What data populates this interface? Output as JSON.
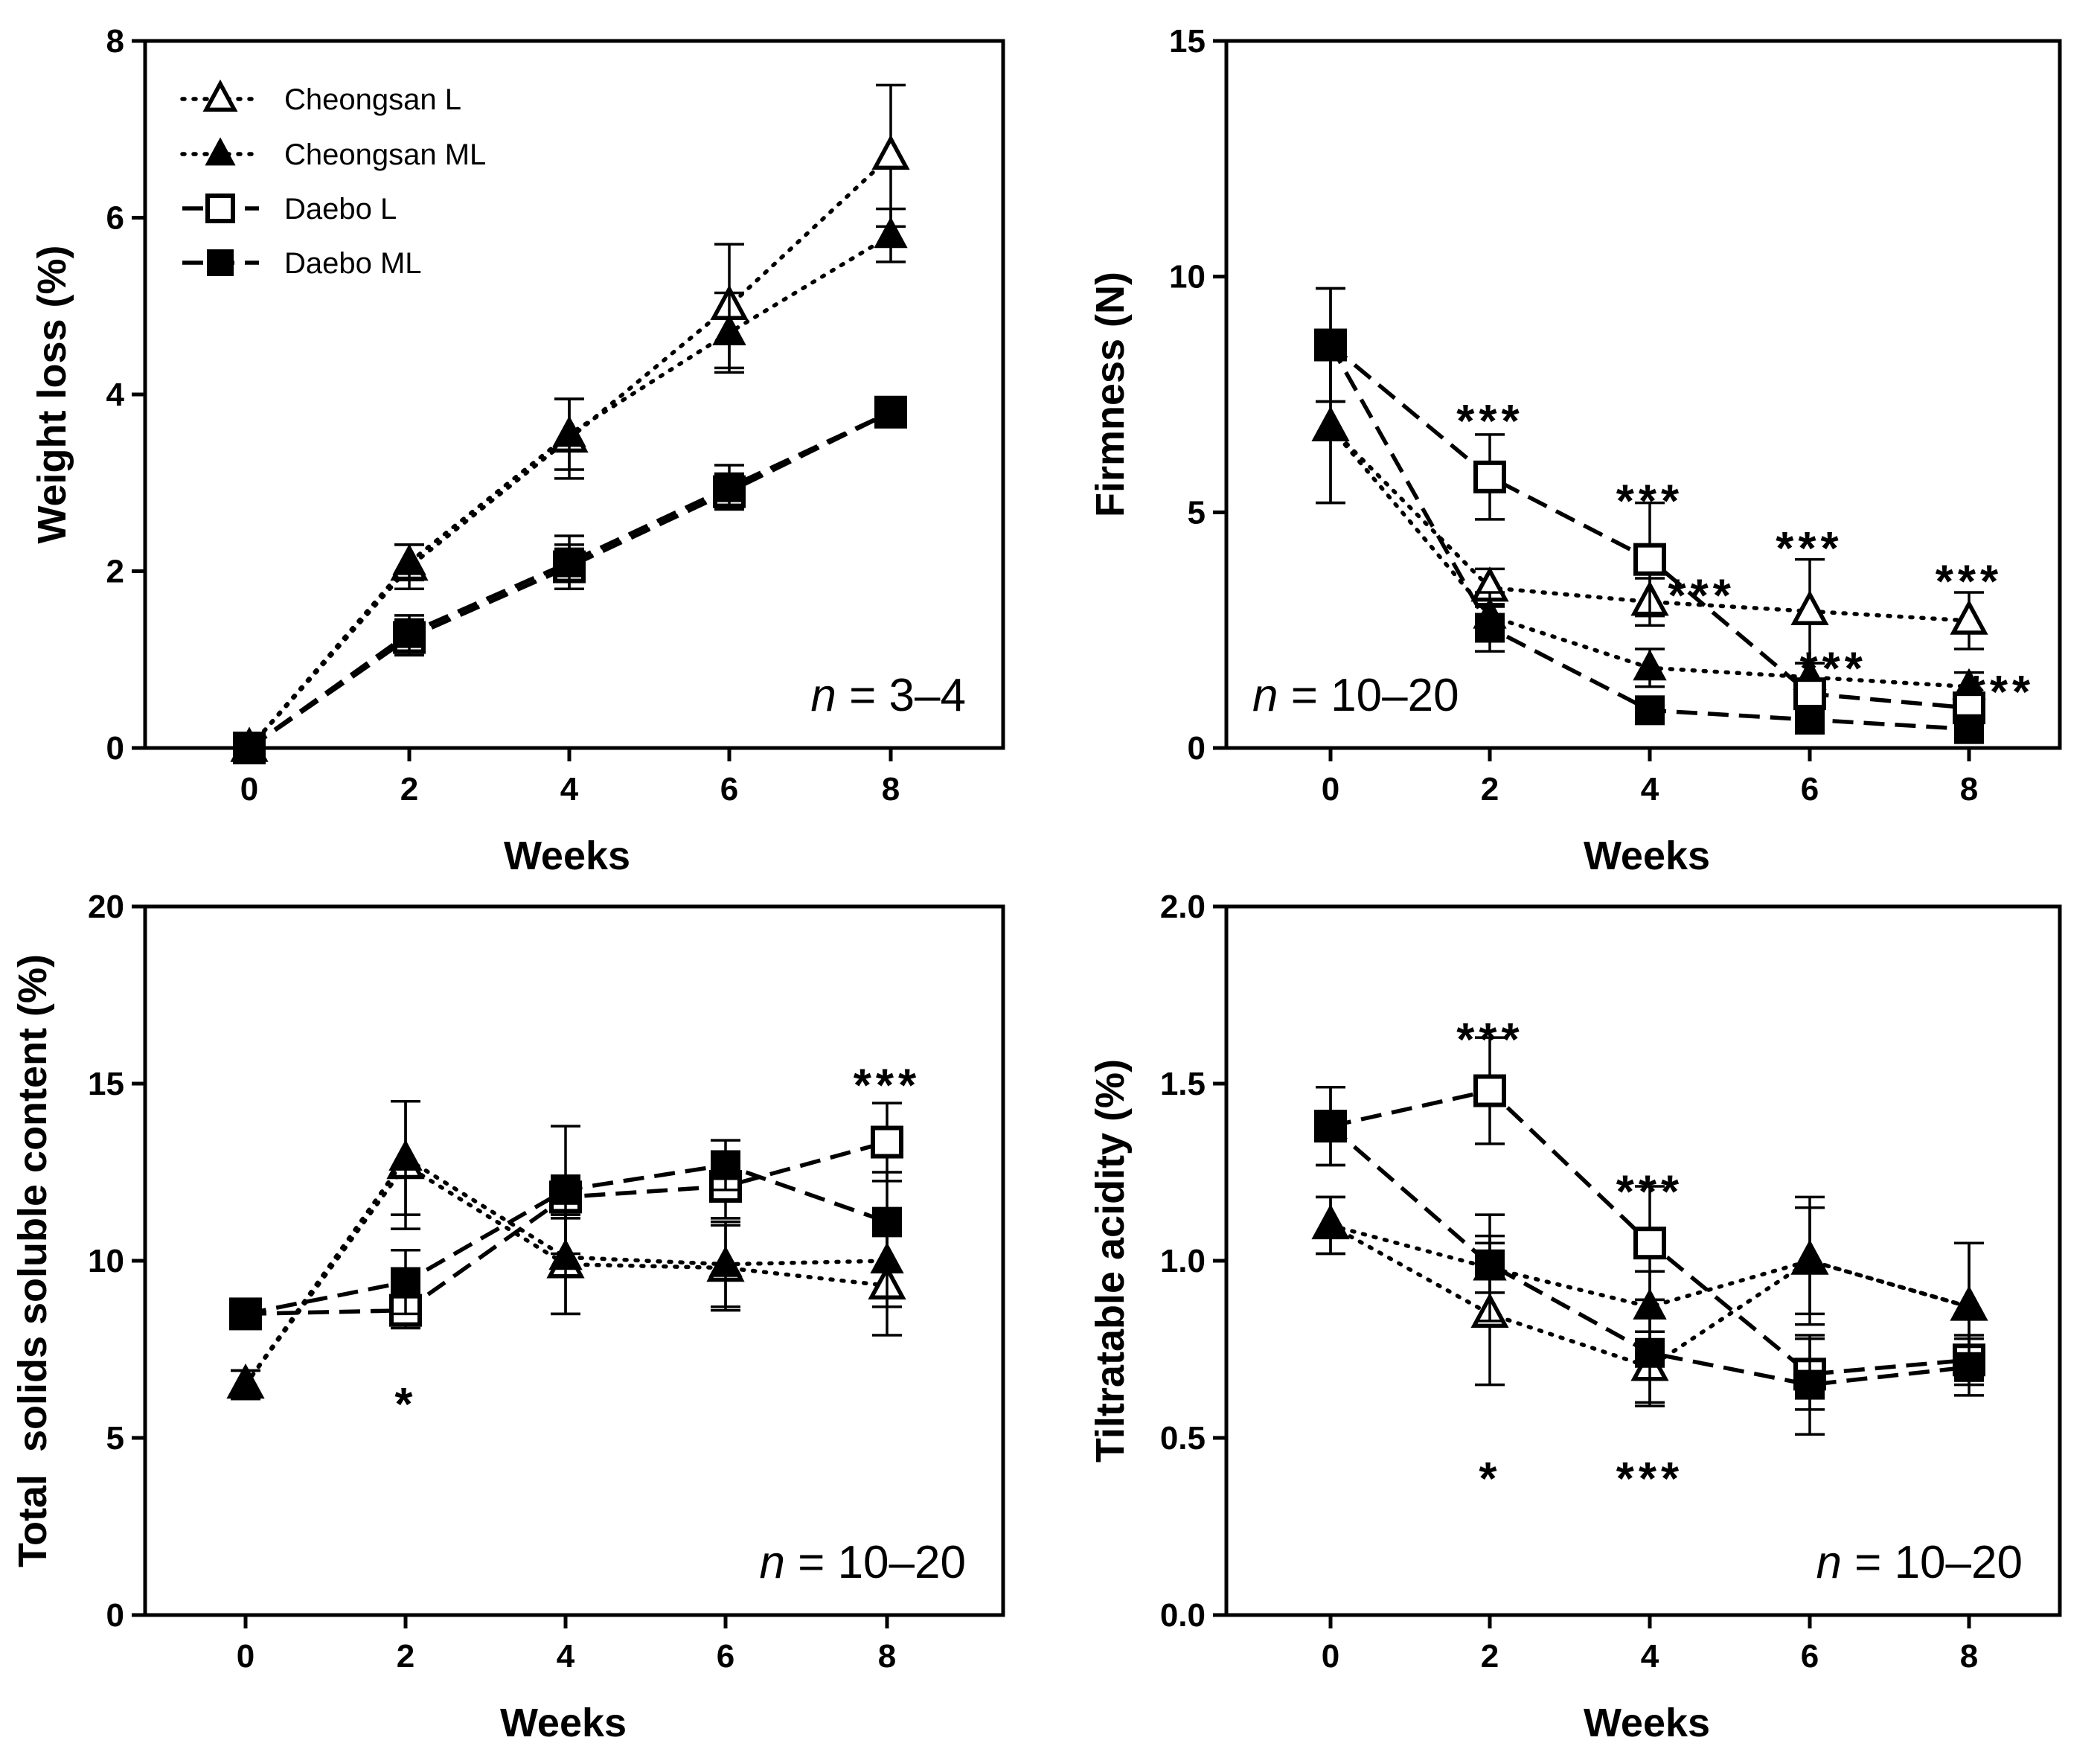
{
  "chart_data": [
    {
      "type": "line",
      "id": "weight-loss",
      "xlabel": "Weeks",
      "ylabel": "Weight loss (%)",
      "ylim": [
        0,
        8
      ],
      "yticks": [
        0,
        2,
        4,
        6,
        8
      ],
      "xticks": [
        0,
        2,
        4,
        6,
        8
      ],
      "n_prefix": "n",
      "n_value": " = 3–4",
      "x": [
        0,
        2,
        4,
        6,
        8
      ],
      "series": [
        {
          "name": "Cheongsan L",
          "values": [
            0,
            2.05,
            3.5,
            5.0,
            6.7
          ],
          "errors": [
            0.05,
            0.25,
            0.45,
            0.7,
            0.8
          ]
        },
        {
          "name": "Cheongsan ML",
          "values": [
            0,
            2.1,
            3.55,
            4.7,
            5.8
          ],
          "errors": [
            0.05,
            0.2,
            0.4,
            0.45,
            0.3
          ]
        },
        {
          "name": "Daebo L",
          "values": [
            0,
            1.25,
            2.05,
            2.9,
            3.8
          ],
          "errors": [
            0.05,
            0.2,
            0.25,
            0.2,
            0.1
          ]
        },
        {
          "name": "Daebo ML",
          "values": [
            0,
            1.3,
            2.1,
            2.95,
            3.8
          ],
          "errors": [
            0.05,
            0.2,
            0.3,
            0.25,
            0.1
          ]
        }
      ],
      "annotations": []
    },
    {
      "type": "line",
      "id": "firmness",
      "xlabel": "Weeks",
      "ylabel": "Firmness (N)",
      "ylim": [
        0,
        15
      ],
      "yticks": [
        0,
        5,
        10,
        15
      ],
      "xticks": [
        0,
        2,
        4,
        6,
        8
      ],
      "n_prefix": "n",
      "n_value": " = 10–20",
      "x": [
        0,
        2,
        4,
        6,
        8
      ],
      "series": [
        {
          "name": "Cheongsan L",
          "values": [
            6.8,
            3.4,
            3.1,
            2.9,
            2.7
          ],
          "errors": [
            1.6,
            0.4,
            0.5,
            1.1,
            0.6
          ]
        },
        {
          "name": "Cheongsan ML",
          "values": [
            6.8,
            2.8,
            1.7,
            1.5,
            1.3
          ],
          "errors": [
            1.6,
            0.5,
            0.4,
            0.3,
            0.3
          ]
        },
        {
          "name": "Daebo L",
          "values": [
            8.55,
            5.75,
            4.0,
            1.15,
            0.85
          ],
          "errors": [
            1.2,
            0.9,
            1.2,
            0.3,
            0.2
          ]
        },
        {
          "name": "Daebo ML",
          "values": [
            8.55,
            2.55,
            0.8,
            0.6,
            0.4
          ],
          "errors": [
            1.2,
            0.5,
            0.2,
            0.15,
            0.1
          ]
        }
      ],
      "annotations": [
        {
          "text": "***",
          "x": 2,
          "y": 7.2
        },
        {
          "text": "***",
          "x": 4,
          "y": 5.5
        },
        {
          "text": "***",
          "x": 4.65,
          "y": 3.5
        },
        {
          "text": "***",
          "x": 6,
          "y": 4.5
        },
        {
          "text": "***",
          "x": 6.3,
          "y": 1.95
        },
        {
          "text": "***",
          "x": 8,
          "y": 3.8
        },
        {
          "text": "***",
          "x": 8.4,
          "y": 1.45
        }
      ]
    },
    {
      "type": "line",
      "id": "tss",
      "xlabel": "Weeks",
      "ylabel": "Total  solids soluble content (%)",
      "ylim": [
        0,
        20
      ],
      "yticks": [
        0,
        5,
        10,
        15,
        20
      ],
      "xticks": [
        0,
        2,
        4,
        6,
        8
      ],
      "n_prefix": "n",
      "n_value": " = 10–20",
      "x": [
        0,
        2,
        4,
        6,
        8
      ],
      "series": [
        {
          "name": "Cheongsan L",
          "values": [
            6.5,
            12.7,
            9.9,
            9.8,
            9.3
          ],
          "errors": [
            0.4,
            1.8,
            1.4,
            1.2,
            1.4
          ]
        },
        {
          "name": "Cheongsan ML",
          "values": [
            6.5,
            12.9,
            10.1,
            9.9,
            10.0
          ],
          "errors": [
            0.4,
            1.6,
            1.6,
            1.2,
            1.3
          ]
        },
        {
          "name": "Daebo L",
          "values": [
            8.5,
            8.6,
            11.8,
            12.1,
            13.35
          ],
          "errors": [
            0.3,
            0.5,
            0.6,
            0.9,
            1.1
          ]
        },
        {
          "name": "Daebo ML",
          "values": [
            8.5,
            9.4,
            12.0,
            12.7,
            11.1
          ],
          "errors": [
            0.3,
            0.9,
            1.8,
            0.7,
            1.4
          ]
        }
      ],
      "annotations": [
        {
          "text": "*",
          "x": 2,
          "y": 6.3
        },
        {
          "text": "***",
          "x": 8,
          "y": 15.3
        }
      ]
    },
    {
      "type": "line",
      "id": "acidity",
      "xlabel": "Weeks",
      "ylabel": "Tiltratable acidity (%)",
      "ylim": [
        0,
        2.0
      ],
      "yticks": [
        0.0,
        0.5,
        1.0,
        1.5,
        2.0
      ],
      "ytick_labels": [
        "0.0",
        "0.5",
        "1.0",
        "1.5",
        "2.0"
      ],
      "xticks": [
        0,
        2,
        4,
        6,
        8
      ],
      "n_prefix": "n",
      "n_value": " = 10–20",
      "x": [
        0,
        2,
        4,
        6,
        8
      ],
      "series": [
        {
          "name": "Cheongsan L",
          "values": [
            1.1,
            0.85,
            0.7,
            1.0,
            0.87
          ],
          "errors": [
            0.08,
            0.2,
            0.1,
            0.18,
            0.18
          ]
        },
        {
          "name": "Cheongsan ML",
          "values": [
            1.1,
            0.98,
            0.87,
            1.0,
            0.87
          ],
          "errors": [
            0.08,
            0.15,
            0.1,
            0.15,
            0.18
          ]
        },
        {
          "name": "Daebo L",
          "values": [
            1.38,
            1.48,
            1.05,
            0.68,
            0.72
          ],
          "errors": [
            0.11,
            0.15,
            0.16,
            0.1,
            0.07
          ]
        },
        {
          "name": "Daebo ML",
          "values": [
            1.38,
            0.99,
            0.74,
            0.65,
            0.7
          ],
          "errors": [
            0.11,
            0.08,
            0.15,
            0.14,
            0.08
          ]
        }
      ],
      "annotations": [
        {
          "text": "***",
          "x": 2,
          "y": 1.66
        },
        {
          "text": "*",
          "x": 2,
          "y": 0.42
        },
        {
          "text": "***",
          "x": 4,
          "y": 1.23
        },
        {
          "text": "***",
          "x": 4,
          "y": 0.42
        }
      ]
    }
  ]
}
